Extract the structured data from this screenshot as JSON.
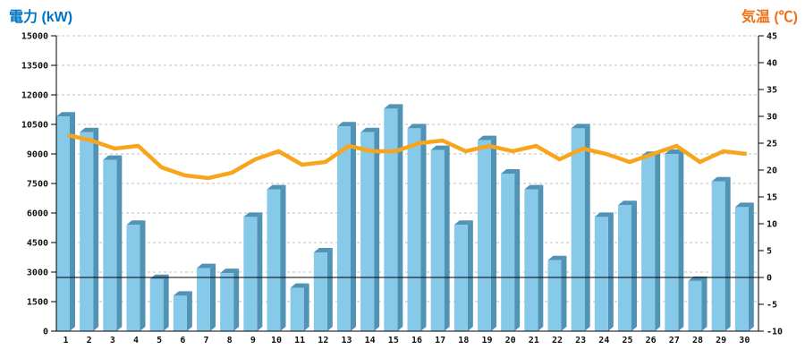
{
  "header": {
    "left_axis_title": "電力 (kW)",
    "right_axis_title": "気温 (℃)"
  },
  "chart_data": {
    "type": "combo-bar-line",
    "categories": [
      "1",
      "2",
      "3",
      "4",
      "5",
      "6",
      "7",
      "8",
      "9",
      "10",
      "11",
      "12",
      "13",
      "14",
      "15",
      "16",
      "17",
      "18",
      "19",
      "20",
      "21",
      "22",
      "23",
      "24",
      "25",
      "26",
      "27",
      "28",
      "29",
      "30"
    ],
    "series": [
      {
        "name": "電力",
        "type": "bar",
        "axis": "left",
        "unit": "kW",
        "values": [
          10900,
          10100,
          8700,
          5400,
          2650,
          1800,
          3200,
          2950,
          5800,
          7200,
          2200,
          4000,
          10400,
          10100,
          11300,
          10300,
          9200,
          5400,
          9700,
          8000,
          7200,
          3600,
          10300,
          5800,
          6400,
          8900,
          9000,
          2550,
          7600,
          6300
        ],
        "color_front": "#86C9E9",
        "color_side": "#5193B4"
      },
      {
        "name": "気温",
        "type": "line",
        "axis": "right",
        "unit": "℃",
        "values": [
          26.5,
          25.5,
          24,
          24.5,
          20.5,
          19,
          18.5,
          19.5,
          22,
          23.5,
          21,
          21.5,
          24.5,
          23.5,
          23.5,
          25,
          25.5,
          23.5,
          24.5,
          23.5,
          24.5,
          22,
          24,
          23,
          21.5,
          23,
          24.5,
          21.5,
          23.5,
          23
        ],
        "color": "#F8A51E"
      }
    ],
    "left_axis": {
      "title": "電力 (kW)",
      "title_color": "#0074C4",
      "min": 0,
      "max": 15000,
      "step": 1500,
      "tick_labels": [
        "0",
        "1500",
        "3000",
        "4500",
        "6000",
        "7500",
        "9000",
        "10500",
        "12000",
        "13500",
        "15000"
      ]
    },
    "right_axis": {
      "title": "気温 (℃)",
      "title_color": "#EE7215",
      "min": -10,
      "max": 45,
      "step": 5,
      "tick_labels": [
        "-10",
        "-5",
        "0",
        "5",
        "10",
        "15",
        "20",
        "25",
        "30",
        "35",
        "40",
        "45"
      ]
    },
    "grid": {
      "show": true,
      "dashed": true,
      "color": "#BFBFBF"
    },
    "zero_temp_line": {
      "value": 0,
      "color": "#000000"
    },
    "legend": {
      "show": false
    },
    "xlabel": "",
    "ylabel_left": "電力 (kW)",
    "ylabel_right": "気温 (℃)"
  }
}
